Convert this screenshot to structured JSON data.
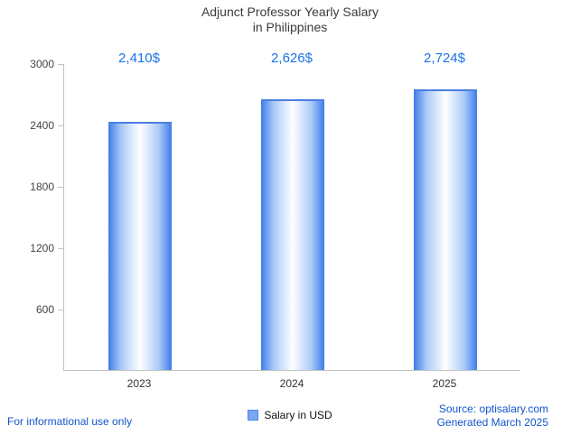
{
  "title": {
    "line1": "Adjunct Professor Yearly Salary",
    "line2": "in Philippines"
  },
  "chart_data": {
    "type": "bar",
    "categories": [
      "2023",
      "2024",
      "2025"
    ],
    "values": [
      2410,
      2626,
      2724
    ],
    "value_labels": [
      "2,410$",
      "2,626$",
      "2,724$"
    ],
    "yticks": [
      600,
      1200,
      1800,
      2400,
      3000
    ],
    "ylim": [
      0,
      3000
    ],
    "xlabel": "",
    "ylabel": "",
    "grid": false,
    "legend_position": "bottom",
    "series_name": "Salary in USD"
  },
  "legend": {
    "label": "Salary in USD"
  },
  "footer": {
    "left": "For informational use only",
    "source": "Source: optisalary.com",
    "generated": "Generated March 2025"
  },
  "colors": {
    "accent_label": "#1a73e8",
    "bar_edge": "#3f7ce8",
    "bar_mid": "#a9c9f8",
    "bar_center": "#ffffff",
    "bar_top": "#4a7fe0",
    "link_blue": "#1155cc",
    "axis_gray": "#c3c3c3"
  }
}
